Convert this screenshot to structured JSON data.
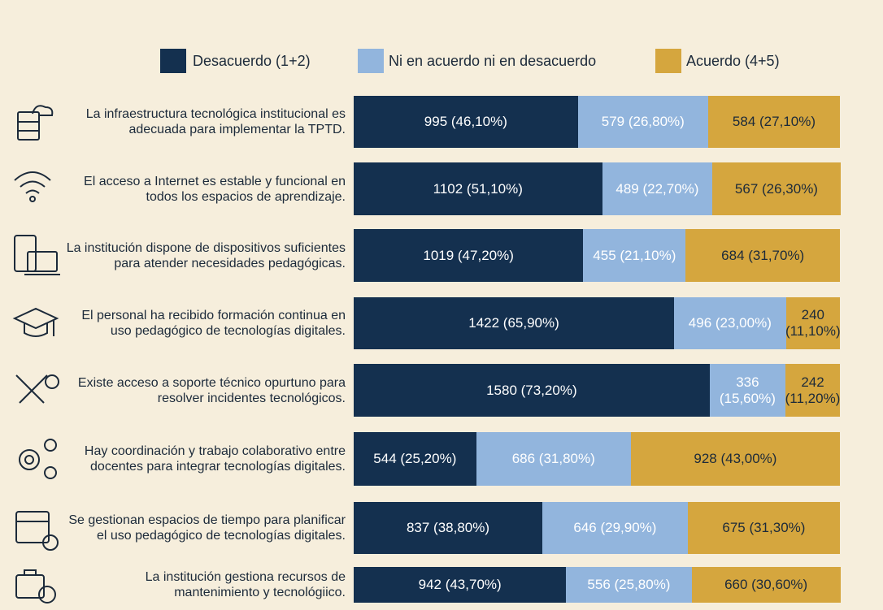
{
  "chart_data": {
    "type": "stacked-bar",
    "orientation": "horizontal",
    "categories": [
      "La infraestructura tecnológica institucional es adecuada para implementar la TPTD.",
      "El acceso a Internet es estable y funcional en todos los espacios de aprendizaje.",
      "La institución dispone de dispositivos suficientes para atender necesidades pedagógicas.",
      "El personal ha recibido formación continua en uso pedagógico de tecnologías digitales.",
      "Existe acceso a soporte técnico opurtuno para resolver incidentes tecnológicos.",
      "Hay coordinación y trabajo colaborativo entre docentes para integrar tecnologías digitales.",
      "Se gestionan espacios de tiempo para planificar el uso pedagógico de tecnologías digitales.",
      "La institución gestiona recursos de mantenimiento y tecnológiico."
    ],
    "series": [
      {
        "name": "Desacuerdo (1+2)",
        "color": "#14304f",
        "values": [
          46.1,
          51.1,
          47.2,
          65.9,
          73.2,
          25.2,
          38.8,
          43.7
        ],
        "value_labels": [
          "995 (46,10%)",
          "1102 (51,10%)",
          "1019 (47,20%)",
          "1422 (65,90%)",
          "1580 (73,20%)",
          "544 (25,20%)",
          "837 (38,80%)",
          "942 (43,70%)"
        ]
      },
      {
        "name": "Ni en acuerdo ni en desacuerdo",
        "color": "#92b5dd",
        "values": [
          26.8,
          22.7,
          21.1,
          23.0,
          15.6,
          31.8,
          29.9,
          25.8
        ],
        "value_labels": [
          "579 (26,80%)",
          "489 (22,70%)",
          "455 (21,10%)",
          "496 (23,00%)",
          "336 (15,60%)",
          "686 (31,80%)",
          "646 (29,90%)",
          "556 (25,80%)"
        ]
      },
      {
        "name": "Acuerdo (4+5)",
        "color": "#d5a63e",
        "values": [
          27.1,
          26.3,
          31.7,
          11.1,
          11.2,
          43.0,
          31.3,
          30.6
        ],
        "value_labels": [
          "584 (27,10%)",
          "567 (26,30%)",
          "684 (31,70%)",
          "240 (11,10%)",
          "242 (11,20%)",
          "928 (43,00%)",
          "675 (31,30%)",
          "660 (30,60%)"
        ]
      }
    ],
    "xlim": [
      0,
      100
    ]
  }
}
